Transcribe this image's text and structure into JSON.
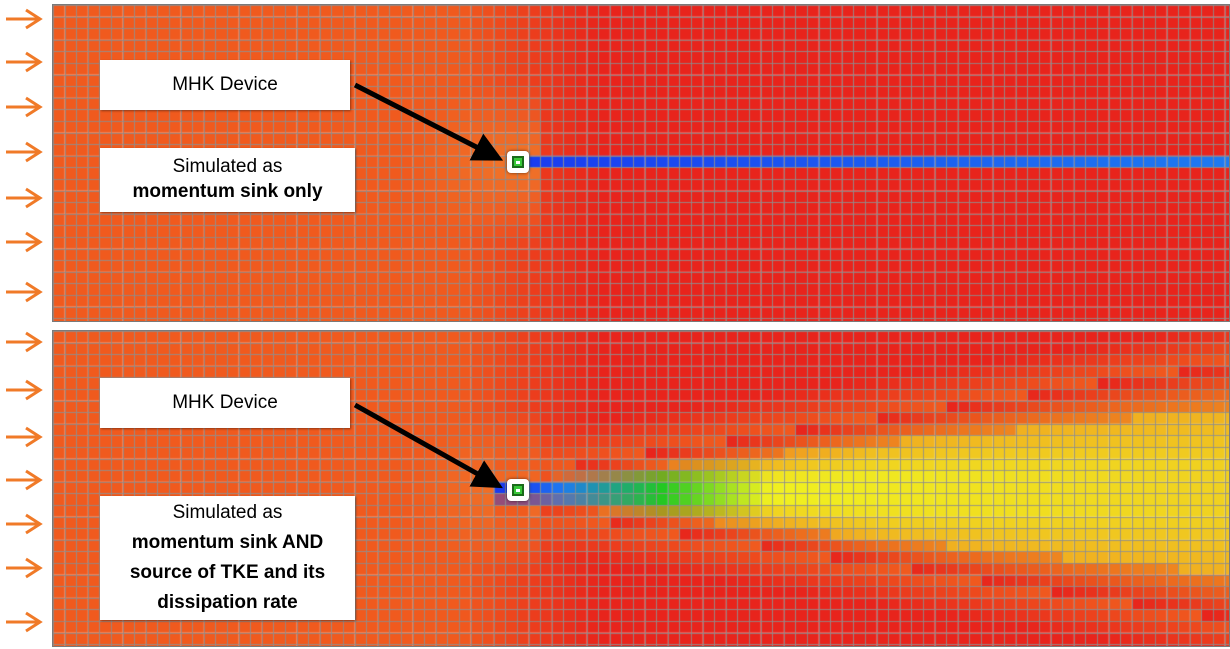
{
  "colors": {
    "inflow_arrow": "#f07a28",
    "background_field": "#e8241c",
    "upstream_field": "#f05a1e",
    "wake_blue": "#1a3cf0",
    "wake_green": "#22c822",
    "wake_yellow": "#f0f020",
    "grid_line": "#8a8a8a",
    "pointer_arrow": "#000000"
  },
  "panels": [
    {
      "id": "top",
      "device_label": "MHK Device",
      "description_lines": [
        {
          "text": "Simulated as",
          "bold": false
        },
        {
          "text": "momentum sink only",
          "bold": true
        }
      ],
      "device_icon": "mhk-device-icon",
      "wake": "narrow blue wake line"
    },
    {
      "id": "bottom",
      "device_label": "MHK Device",
      "description_lines": [
        {
          "text": "Simulated as",
          "bold": false
        },
        {
          "text": "momentum sink AND",
          "bold": true
        },
        {
          "text": "source of TKE and its",
          "bold": true
        },
        {
          "text": "dissipation rate",
          "bold": true
        }
      ],
      "device_icon": "mhk-device-icon",
      "wake": "expanding blue-green-yellow wake"
    }
  ],
  "inflow_arrow_icon": "right-arrow-icon",
  "inflow_arrow_count": 14
}
